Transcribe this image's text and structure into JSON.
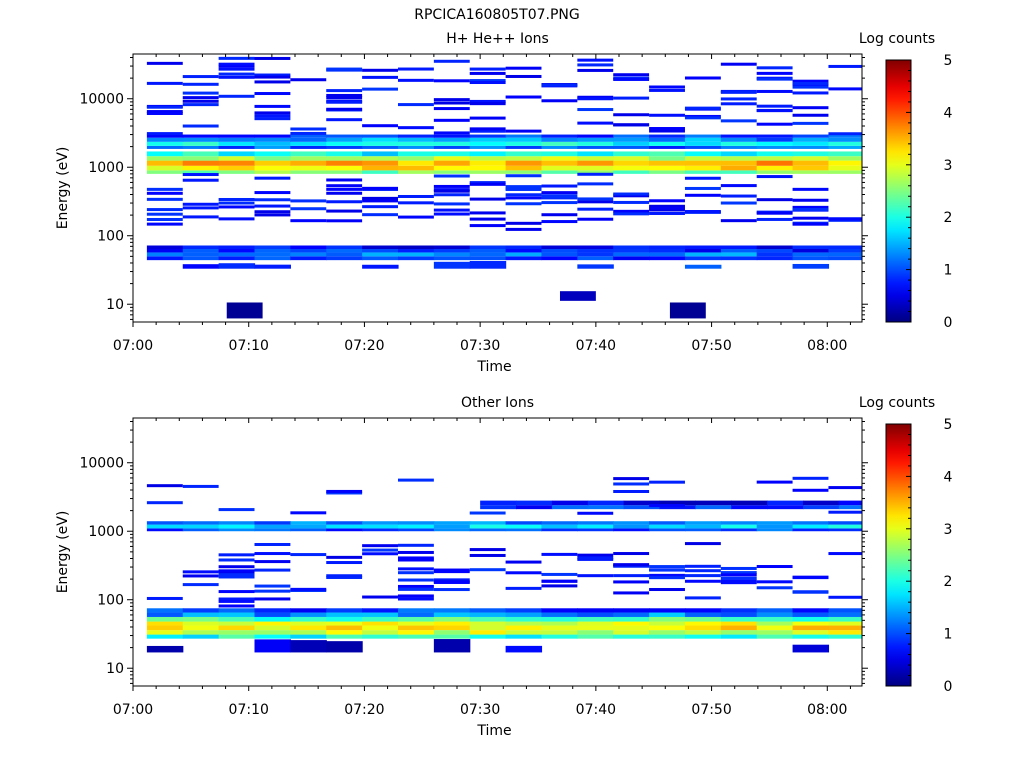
{
  "figure_title": "RPCICA160805T07.PNG",
  "chart_data": [
    {
      "type": "heatmap",
      "title": "H+ He++ Ions",
      "xlabel": "Time",
      "ylabel": "Energy (eV)",
      "x_ticks": [
        "07:00",
        "07:10",
        "07:20",
        "07:30",
        "07:40",
        "07:50",
        "08:00"
      ],
      "x_range_minutes": [
        0,
        63
      ],
      "y_ticks": [
        "10",
        "100",
        "1000",
        "10000"
      ],
      "y_scale": "log",
      "y_range": [
        5.5,
        45000
      ],
      "colorbar": {
        "label": "Log counts",
        "ticks": [
          "0",
          "1",
          "2",
          "3",
          "4",
          "5"
        ],
        "range": [
          0,
          5
        ],
        "colormap": "jet"
      },
      "bands": [
        {
          "e_low": 800,
          "e_high": 900,
          "value": 2.4
        },
        {
          "e_low": 900,
          "e_high": 1050,
          "value": 3.2
        },
        {
          "e_low": 1050,
          "e_high": 1250,
          "value": 3.5
        },
        {
          "e_low": 1250,
          "e_high": 1450,
          "value": 2.8
        },
        {
          "e_low": 1450,
          "e_high": 1700,
          "value": 1.9
        },
        {
          "e_low": 1850,
          "e_high": 2050,
          "value": 1.1
        },
        {
          "e_low": 2050,
          "e_high": 2350,
          "value": 1.9
        },
        {
          "e_low": 2350,
          "e_high": 2700,
          "value": 1.4
        },
        {
          "e_low": 2700,
          "e_high": 3000,
          "value": 0.9
        },
        {
          "e_low": 44,
          "e_high": 50,
          "value": 0.9
        },
        {
          "e_low": 50,
          "e_high": 57,
          "value": 1.2
        },
        {
          "e_low": 57,
          "e_high": 64,
          "value": 0.8
        },
        {
          "e_low": 64,
          "e_high": 72,
          "value": 0.6
        }
      ],
      "low_band": {
        "e_low": 33,
        "e_high": 44,
        "value": 0.6,
        "coverage": 0.5
      },
      "lines": {
        "value": 0.5,
        "energies": [
          9800,
          3300,
          620,
          520,
          430,
          370,
          210,
          180,
          290,
          380,
          250,
          21000,
          29000,
          17000,
          13000,
          7500,
          5200,
          4000,
          700,
          160,
          230,
          320,
          12000,
          36000,
          25000,
          19000,
          8500,
          6300
        ],
        "count": 240
      },
      "spots": [
        {
          "t0": 8.1,
          "t1": 11.2,
          "e_low": 6.2,
          "e_high": 10.6,
          "value": 0.1
        },
        {
          "t0": 46.4,
          "t1": 49.5,
          "e_low": 6.2,
          "e_high": 10.6,
          "value": 0.1
        },
        {
          "t0": 36.9,
          "t1": 40.0,
          "e_low": 11.2,
          "e_high": 15.5,
          "value": 0.3
        }
      ]
    },
    {
      "type": "heatmap",
      "title": "Other Ions",
      "xlabel": "Time",
      "ylabel": "Energy (eV)",
      "x_ticks": [
        "07:00",
        "07:10",
        "07:20",
        "07:30",
        "07:40",
        "07:50",
        "08:00"
      ],
      "x_range_minutes": [
        0,
        63
      ],
      "y_ticks": [
        "10",
        "100",
        "1000",
        "10000"
      ],
      "y_scale": "log",
      "y_range": [
        5.5,
        45000
      ],
      "colorbar": {
        "label": "Log counts",
        "ticks": [
          "0",
          "1",
          "2",
          "3",
          "4",
          "5"
        ],
        "range": [
          0,
          5
        ],
        "colormap": "jet"
      },
      "bands": [
        {
          "e_low": 27,
          "e_high": 31,
          "value": 2.0
        },
        {
          "e_low": 31,
          "e_high": 36,
          "value": 2.9
        },
        {
          "e_low": 36,
          "e_high": 42,
          "value": 3.2
        },
        {
          "e_low": 42,
          "e_high": 48,
          "value": 3.0
        },
        {
          "e_low": 48,
          "e_high": 56,
          "value": 2.2
        },
        {
          "e_low": 56,
          "e_high": 65,
          "value": 1.3
        },
        {
          "e_low": 65,
          "e_high": 75,
          "value": 0.9
        },
        {
          "e_low": 1000,
          "e_high": 1100,
          "value": 1.0
        },
        {
          "e_low": 1100,
          "e_high": 1250,
          "value": 1.7
        },
        {
          "e_low": 1250,
          "e_high": 1400,
          "value": 1.2
        },
        {
          "e_low": 2100,
          "e_high": 2400,
          "value": 0.9,
          "from": 30.0
        },
        {
          "e_low": 2400,
          "e_high": 2800,
          "value": 0.6,
          "from": 30.0
        }
      ],
      "low_band": {
        "e_low": 17,
        "e_high": 27,
        "value": 0.2,
        "coverage": 0.25
      },
      "lines": {
        "value": 0.5,
        "energies": [
          2300,
          500,
          380,
          320,
          270,
          240,
          200,
          170,
          160,
          130,
          100,
          5200,
          4600,
          600,
          440,
          290,
          260,
          210
        ],
        "count": 120
      },
      "spots": []
    }
  ]
}
